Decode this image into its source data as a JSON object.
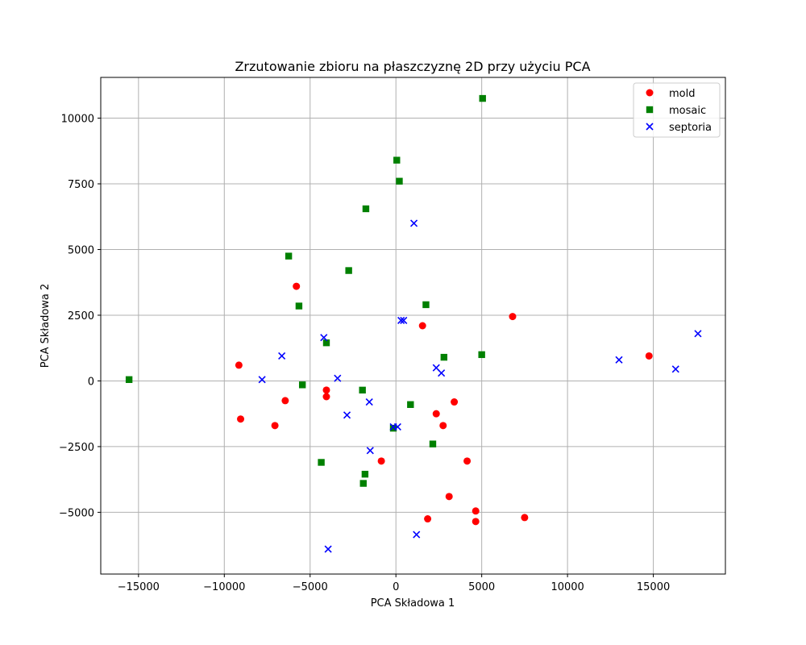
{
  "chart_data": {
    "type": "scatter",
    "title": "Zrzutowanie zbioru na płaszczyznę 2D przy użyciu PCA",
    "xlabel": "PCA Składowa 1",
    "ylabel": "PCA Składowa 2",
    "xlim": [
      -17200,
      19200
    ],
    "ylim": [
      -7350,
      11550
    ],
    "xticks": [
      -15000,
      -10000,
      -5000,
      0,
      5000,
      10000,
      15000
    ],
    "yticks": [
      -5000,
      -2500,
      0,
      2500,
      5000,
      7500,
      10000
    ],
    "grid": true,
    "legend_position": "top-right",
    "series": [
      {
        "name": "mold",
        "marker": "circle",
        "color": "#ff0000",
        "points": [
          [
            -9150,
            600
          ],
          [
            -9050,
            -1450
          ],
          [
            -7050,
            -1700
          ],
          [
            -6450,
            -750
          ],
          [
            -5800,
            3600
          ],
          [
            -4050,
            -350
          ],
          [
            -4050,
            -600
          ],
          [
            -850,
            -3050
          ],
          [
            1550,
            2100
          ],
          [
            2350,
            -1250
          ],
          [
            2750,
            -1700
          ],
          [
            3400,
            -800
          ],
          [
            3100,
            -4400
          ],
          [
            4150,
            -3050
          ],
          [
            1850,
            -5250
          ],
          [
            4650,
            -4950
          ],
          [
            4650,
            -5350
          ],
          [
            6800,
            2450
          ],
          [
            7500,
            -5200
          ],
          [
            14750,
            950
          ]
        ]
      },
      {
        "name": "mosaic",
        "marker": "square",
        "color": "#008000",
        "points": [
          [
            -15550,
            50
          ],
          [
            -6250,
            4750
          ],
          [
            -5650,
            2850
          ],
          [
            -5450,
            -150
          ],
          [
            -4350,
            -3100
          ],
          [
            -4050,
            1450
          ],
          [
            -2750,
            4200
          ],
          [
            -1950,
            -350
          ],
          [
            -1750,
            6550
          ],
          [
            -1800,
            -3550
          ],
          [
            -1900,
            -3900
          ],
          [
            50,
            8400
          ],
          [
            200,
            7600
          ],
          [
            -150,
            -1800
          ],
          [
            850,
            -900
          ],
          [
            1750,
            2900
          ],
          [
            2150,
            -2400
          ],
          [
            2800,
            900
          ],
          [
            5000,
            1000
          ],
          [
            5050,
            10750
          ]
        ]
      },
      {
        "name": "septoria",
        "marker": "x",
        "color": "#0000ff",
        "points": [
          [
            -7800,
            50
          ],
          [
            -6650,
            950
          ],
          [
            -4200,
            1650
          ],
          [
            -3400,
            100
          ],
          [
            -2850,
            -1300
          ],
          [
            -1550,
            -800
          ],
          [
            -1500,
            -2650
          ],
          [
            -150,
            -1750
          ],
          [
            100,
            -1750
          ],
          [
            300,
            2300
          ],
          [
            450,
            2300
          ],
          [
            1050,
            6000
          ],
          [
            1200,
            -5850
          ],
          [
            2350,
            500
          ],
          [
            2650,
            300
          ],
          [
            -3950,
            -6400
          ],
          [
            13000,
            800
          ],
          [
            16300,
            450
          ],
          [
            17600,
            1800
          ]
        ]
      }
    ]
  }
}
